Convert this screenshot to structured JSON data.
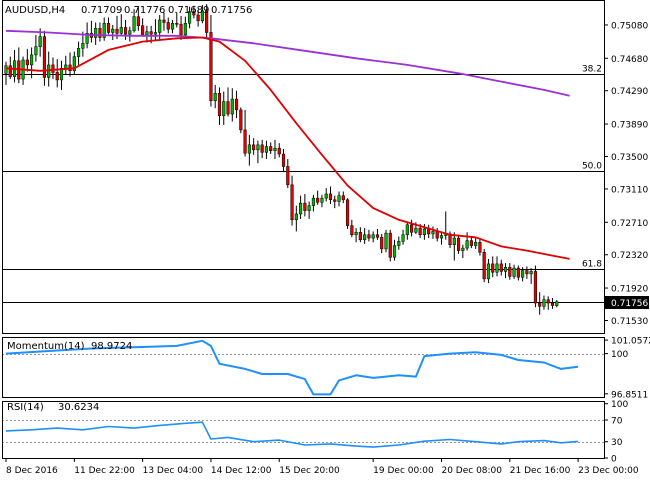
{
  "header": {
    "symbol": "AUDUSD,H4",
    "ohlc": [
      "0.71709",
      "0.71776",
      "0.71689",
      "0.71756"
    ]
  },
  "chart_data": [
    {
      "type": "candlestick",
      "name": "AUDUSD,H4",
      "y_ticks": [
        0.7508,
        0.7468,
        0.7429,
        0.7389,
        0.735,
        0.7311,
        0.7271,
        0.7232,
        0.7192,
        0.7153
      ],
      "y_tick_labels": [
        "0.75080",
        "0.74680",
        "0.74290",
        "0.73890",
        "0.73500",
        "0.73110",
        "0.72710",
        "0.72320",
        "0.71920",
        "0.71530"
      ],
      "ylim": [
        0.7138,
        0.7538
      ],
      "current_price": 0.71756,
      "current_price_label": "0.71756",
      "x_labels": [
        "8 Dec 2016",
        "11 Dec 22:00",
        "13 Dec 04:00",
        "14 Dec 12:00",
        "15 Dec 20:00",
        "19 Dec 00:00",
        "20 Dec 08:00",
        "21 Dec 16:00",
        "23 Dec 00:00"
      ],
      "x_label_bars": [
        0,
        16,
        32,
        48,
        64,
        86,
        102,
        118,
        134
      ],
      "fib_levels": [
        {
          "label": "38.2",
          "value": 0.74489
        },
        {
          "label": "50.0",
          "value": 0.73321
        },
        {
          "label": "61.8",
          "value": 0.7215
        }
      ],
      "candles": [
        [
          0.745,
          0.7464,
          0.7436,
          0.7459
        ],
        [
          0.7459,
          0.747,
          0.7443,
          0.7446
        ],
        [
          0.7446,
          0.7478,
          0.7439,
          0.7465
        ],
        [
          0.7465,
          0.7481,
          0.7438,
          0.7443
        ],
        [
          0.7443,
          0.747,
          0.7436,
          0.7466
        ],
        [
          0.7466,
          0.7479,
          0.7452,
          0.746
        ],
        [
          0.746,
          0.7481,
          0.7444,
          0.7472
        ],
        [
          0.7472,
          0.7496,
          0.7464,
          0.7482
        ],
        [
          0.7482,
          0.7504,
          0.747,
          0.7494
        ],
        [
          0.7494,
          0.7501,
          0.7435,
          0.7445
        ],
        [
          0.7445,
          0.7476,
          0.7434,
          0.746
        ],
        [
          0.746,
          0.7469,
          0.7443,
          0.7451
        ],
        [
          0.7451,
          0.7467,
          0.7433,
          0.7442
        ],
        [
          0.7442,
          0.7465,
          0.743,
          0.7456
        ],
        [
          0.7456,
          0.7471,
          0.7448,
          0.746
        ],
        [
          0.746,
          0.7475,
          0.7446,
          0.7453
        ],
        [
          0.7453,
          0.7476,
          0.7448,
          0.747
        ],
        [
          0.747,
          0.7488,
          0.746,
          0.748
        ],
        [
          0.748,
          0.75,
          0.747,
          0.7486
        ],
        [
          0.7486,
          0.7511,
          0.748,
          0.7498
        ],
        [
          0.7498,
          0.7513,
          0.7487,
          0.7493
        ],
        [
          0.7493,
          0.7511,
          0.7484,
          0.7504
        ],
        [
          0.7504,
          0.7511,
          0.7488,
          0.7493
        ],
        [
          0.7493,
          0.7517,
          0.7489,
          0.751
        ],
        [
          0.751,
          0.7517,
          0.7497,
          0.7499
        ],
        [
          0.7499,
          0.7508,
          0.749,
          0.7503
        ],
        [
          0.7503,
          0.7519,
          0.7491,
          0.7498
        ],
        [
          0.7498,
          0.7521,
          0.7495,
          0.7505
        ],
        [
          0.7505,
          0.7514,
          0.749,
          0.7497
        ],
        [
          0.7497,
          0.7506,
          0.7488,
          0.7501
        ],
        [
          0.7501,
          0.7527,
          0.7499,
          0.7518
        ],
        [
          0.7518,
          0.7529,
          0.7501,
          0.7507
        ],
        [
          0.7507,
          0.7516,
          0.7494,
          0.7496
        ],
        [
          0.7496,
          0.7507,
          0.7487,
          0.75
        ],
        [
          0.75,
          0.7507,
          0.7486,
          0.7497
        ],
        [
          0.7497,
          0.7515,
          0.749,
          0.7499
        ],
        [
          0.7499,
          0.752,
          0.7491,
          0.7514
        ],
        [
          0.7514,
          0.7523,
          0.7501,
          0.7511
        ],
        [
          0.7511,
          0.7517,
          0.7498,
          0.7503
        ],
        [
          0.7503,
          0.7514,
          0.7498,
          0.751
        ],
        [
          0.751,
          0.7523,
          0.7505,
          0.7509
        ],
        [
          0.7509,
          0.7519,
          0.749,
          0.7496
        ],
        [
          0.7496,
          0.7518,
          0.7492,
          0.751
        ],
        [
          0.751,
          0.753,
          0.7504,
          0.7524
        ],
        [
          0.7524,
          0.7531,
          0.7516,
          0.752
        ],
        [
          0.752,
          0.7526,
          0.7506,
          0.7513
        ],
        [
          0.7513,
          0.7532,
          0.751,
          0.7525
        ],
        [
          0.7525,
          0.7533,
          0.7491,
          0.7499
        ],
        [
          0.7499,
          0.752,
          0.741,
          0.7417
        ],
        [
          0.7417,
          0.7436,
          0.7408,
          0.7426
        ],
        [
          0.7426,
          0.7433,
          0.7388,
          0.7399
        ],
        [
          0.7399,
          0.7428,
          0.7388,
          0.7416
        ],
        [
          0.7416,
          0.7433,
          0.7398,
          0.7401
        ],
        [
          0.7401,
          0.7432,
          0.7392,
          0.7419
        ],
        [
          0.7419,
          0.7429,
          0.7396,
          0.7406
        ],
        [
          0.7406,
          0.7409,
          0.7378,
          0.7382
        ],
        [
          0.7382,
          0.7406,
          0.735,
          0.7354
        ],
        [
          0.7354,
          0.7376,
          0.7339,
          0.7364
        ],
        [
          0.7364,
          0.7372,
          0.7352,
          0.7358
        ],
        [
          0.7358,
          0.7369,
          0.7342,
          0.7364
        ],
        [
          0.7364,
          0.737,
          0.7348,
          0.7355
        ],
        [
          0.7355,
          0.7369,
          0.7347,
          0.7362
        ],
        [
          0.7362,
          0.7367,
          0.7353,
          0.7357
        ],
        [
          0.7357,
          0.737,
          0.7347,
          0.736
        ],
        [
          0.736,
          0.7366,
          0.7349,
          0.7353
        ],
        [
          0.7353,
          0.7359,
          0.7332,
          0.7338
        ],
        [
          0.7338,
          0.7347,
          0.7312,
          0.7316
        ],
        [
          0.7316,
          0.7327,
          0.7267,
          0.7274
        ],
        [
          0.7274,
          0.7291,
          0.726,
          0.7281
        ],
        [
          0.7281,
          0.7303,
          0.7275,
          0.7294
        ],
        [
          0.7294,
          0.7305,
          0.7278,
          0.7285
        ],
        [
          0.7285,
          0.7296,
          0.7275,
          0.7291
        ],
        [
          0.7291,
          0.7304,
          0.7284,
          0.73
        ],
        [
          0.73,
          0.7309,
          0.7292,
          0.7295
        ],
        [
          0.7295,
          0.7304,
          0.7289,
          0.73
        ],
        [
          0.73,
          0.7312,
          0.7296,
          0.7305
        ],
        [
          0.7305,
          0.7314,
          0.7293,
          0.7298
        ],
        [
          0.7298,
          0.7303,
          0.7288,
          0.7296
        ],
        [
          0.7296,
          0.7308,
          0.729,
          0.7303
        ],
        [
          0.7303,
          0.7308,
          0.7294,
          0.7298
        ],
        [
          0.7298,
          0.73,
          0.7263,
          0.7267
        ],
        [
          0.7267,
          0.7274,
          0.7253,
          0.7256
        ],
        [
          0.7256,
          0.7264,
          0.7247,
          0.7259
        ],
        [
          0.7259,
          0.7265,
          0.7247,
          0.725
        ],
        [
          0.725,
          0.7264,
          0.7245,
          0.7256
        ],
        [
          0.7256,
          0.7262,
          0.7248,
          0.7252
        ],
        [
          0.7252,
          0.726,
          0.7247,
          0.7256
        ],
        [
          0.7256,
          0.7263,
          0.725,
          0.7253
        ],
        [
          0.7253,
          0.7257,
          0.7234,
          0.7239
        ],
        [
          0.7239,
          0.7262,
          0.7235,
          0.7258
        ],
        [
          0.7258,
          0.7262,
          0.7224,
          0.7229
        ],
        [
          0.7229,
          0.725,
          0.7225,
          0.7243
        ],
        [
          0.7243,
          0.7254,
          0.7238,
          0.7248
        ],
        [
          0.7248,
          0.7262,
          0.7244,
          0.7256
        ],
        [
          0.7256,
          0.7272,
          0.725,
          0.7268
        ],
        [
          0.7268,
          0.7274,
          0.7254,
          0.7259
        ],
        [
          0.7259,
          0.7271,
          0.7257,
          0.7264
        ],
        [
          0.7264,
          0.7269,
          0.7252,
          0.7256
        ],
        [
          0.7256,
          0.7269,
          0.725,
          0.7263
        ],
        [
          0.7263,
          0.7268,
          0.7252,
          0.7257
        ],
        [
          0.7257,
          0.7266,
          0.7251,
          0.726
        ],
        [
          0.726,
          0.7264,
          0.7248,
          0.7252
        ],
        [
          0.7252,
          0.7258,
          0.7244,
          0.7255
        ],
        [
          0.7255,
          0.7284,
          0.725,
          0.7257
        ],
        [
          0.7257,
          0.726,
          0.724,
          0.7244
        ],
        [
          0.7244,
          0.7259,
          0.7225,
          0.7252
        ],
        [
          0.7252,
          0.7256,
          0.7233,
          0.7237
        ],
        [
          0.7237,
          0.7244,
          0.7228,
          0.724
        ],
        [
          0.724,
          0.7259,
          0.7237,
          0.7249
        ],
        [
          0.7249,
          0.7254,
          0.724,
          0.7243
        ],
        [
          0.7243,
          0.7252,
          0.7239,
          0.7247
        ],
        [
          0.7247,
          0.7252,
          0.7231,
          0.7235
        ],
        [
          0.7235,
          0.7239,
          0.7199,
          0.7203
        ],
        [
          0.7203,
          0.7227,
          0.7198,
          0.7221
        ],
        [
          0.7221,
          0.723,
          0.7205,
          0.7211
        ],
        [
          0.7211,
          0.723,
          0.7206,
          0.7221
        ],
        [
          0.7221,
          0.7226,
          0.7207,
          0.7212
        ],
        [
          0.7212,
          0.7222,
          0.7204,
          0.7217
        ],
        [
          0.7217,
          0.7222,
          0.7202,
          0.7206
        ],
        [
          0.7206,
          0.722,
          0.7203,
          0.7216
        ],
        [
          0.7216,
          0.7219,
          0.7201,
          0.7205
        ],
        [
          0.7205,
          0.7217,
          0.72,
          0.7213
        ],
        [
          0.7213,
          0.7218,
          0.7203,
          0.7209
        ],
        [
          0.7209,
          0.7216,
          0.7197,
          0.7212
        ],
        [
          0.7212,
          0.7219,
          0.7169,
          0.7174
        ],
        [
          0.7174,
          0.7187,
          0.716,
          0.717
        ],
        [
          0.717,
          0.7183,
          0.7166,
          0.7178
        ],
        [
          0.7178,
          0.7182,
          0.7166,
          0.7174
        ],
        [
          0.7174,
          0.718,
          0.7167,
          0.7171
        ],
        [
          0.71709,
          0.71776,
          0.71689,
          0.71756
        ]
      ],
      "ma_fast": {
        "color": "#e00000",
        "points": [
          [
            0,
            0.7456
          ],
          [
            8,
            0.7453
          ],
          [
            16,
            0.7456
          ],
          [
            24,
            0.7478
          ],
          [
            32,
            0.7488
          ],
          [
            40,
            0.7492
          ],
          [
            46,
            0.7493
          ],
          [
            50,
            0.7488
          ],
          [
            56,
            0.7465
          ],
          [
            62,
            0.743
          ],
          [
            68,
            0.739
          ],
          [
            74,
            0.7352
          ],
          [
            80,
            0.7315
          ],
          [
            86,
            0.7288
          ],
          [
            92,
            0.7274
          ],
          [
            98,
            0.7265
          ],
          [
            104,
            0.7256
          ],
          [
            110,
            0.7253
          ],
          [
            116,
            0.7242
          ],
          [
            122,
            0.7237
          ],
          [
            128,
            0.7231
          ],
          [
            132,
            0.7227
          ]
        ]
      },
      "ma_slow": {
        "color": "#9b30d9",
        "points": [
          [
            0,
            0.7501
          ],
          [
            10,
            0.7499
          ],
          [
            20,
            0.7496
          ],
          [
            30,
            0.7495
          ],
          [
            40,
            0.7495
          ],
          [
            48,
            0.7492
          ],
          [
            58,
            0.7486
          ],
          [
            70,
            0.7477
          ],
          [
            82,
            0.7468
          ],
          [
            94,
            0.746
          ],
          [
            106,
            0.745
          ],
          [
            116,
            0.744
          ],
          [
            126,
            0.743
          ],
          [
            132,
            0.7423
          ]
        ]
      }
    },
    {
      "type": "line",
      "name": "Momentum(14)",
      "value_label": "98.9724",
      "y_tick_labels": [
        "101.0572",
        "100",
        "96.8511"
      ],
      "y_ticks": [
        101.0572,
        100,
        96.8511
      ],
      "ylim": [
        96.6,
        101.3
      ],
      "color": "#1e90ff",
      "level": 100,
      "points": [
        [
          0,
          100.0
        ],
        [
          10,
          100.2
        ],
        [
          20,
          100.4
        ],
        [
          30,
          100.5
        ],
        [
          40,
          100.6
        ],
        [
          46,
          101.0
        ],
        [
          48,
          100.6
        ],
        [
          50,
          99.2
        ],
        [
          56,
          98.8
        ],
        [
          60,
          98.4
        ],
        [
          66,
          98.4
        ],
        [
          70,
          98.0
        ],
        [
          72,
          96.8
        ],
        [
          76,
          96.8
        ],
        [
          78,
          97.9
        ],
        [
          82,
          98.3
        ],
        [
          86,
          98.1
        ],
        [
          92,
          98.3
        ],
        [
          96,
          98.2
        ],
        [
          98,
          99.8
        ],
        [
          104,
          100.0
        ],
        [
          110,
          100.1
        ],
        [
          116,
          99.9
        ],
        [
          120,
          99.5
        ],
        [
          126,
          99.3
        ],
        [
          130,
          98.8
        ],
        [
          134,
          98.9724
        ]
      ]
    },
    {
      "type": "line",
      "name": "RSI(14)",
      "value_label": "30.6234",
      "y_tick_labels": [
        "100",
        "70",
        "30",
        "0"
      ],
      "y_ticks": [
        100,
        70,
        30,
        0
      ],
      "ylim": [
        0,
        105
      ],
      "color": "#1e90ff",
      "levels": [
        70,
        30
      ],
      "points": [
        [
          0,
          50
        ],
        [
          6,
          52
        ],
        [
          12,
          55
        ],
        [
          18,
          52
        ],
        [
          24,
          58
        ],
        [
          30,
          55
        ],
        [
          36,
          60
        ],
        [
          42,
          64
        ],
        [
          46,
          66
        ],
        [
          48,
          35
        ],
        [
          52,
          38
        ],
        [
          58,
          30
        ],
        [
          64,
          33
        ],
        [
          70,
          24
        ],
        [
          76,
          26
        ],
        [
          82,
          22
        ],
        [
          86,
          20
        ],
        [
          92,
          24
        ],
        [
          98,
          31
        ],
        [
          104,
          34
        ],
        [
          110,
          30
        ],
        [
          116,
          26
        ],
        [
          120,
          30
        ],
        [
          126,
          32
        ],
        [
          130,
          28
        ],
        [
          134,
          30.6234
        ]
      ]
    }
  ]
}
